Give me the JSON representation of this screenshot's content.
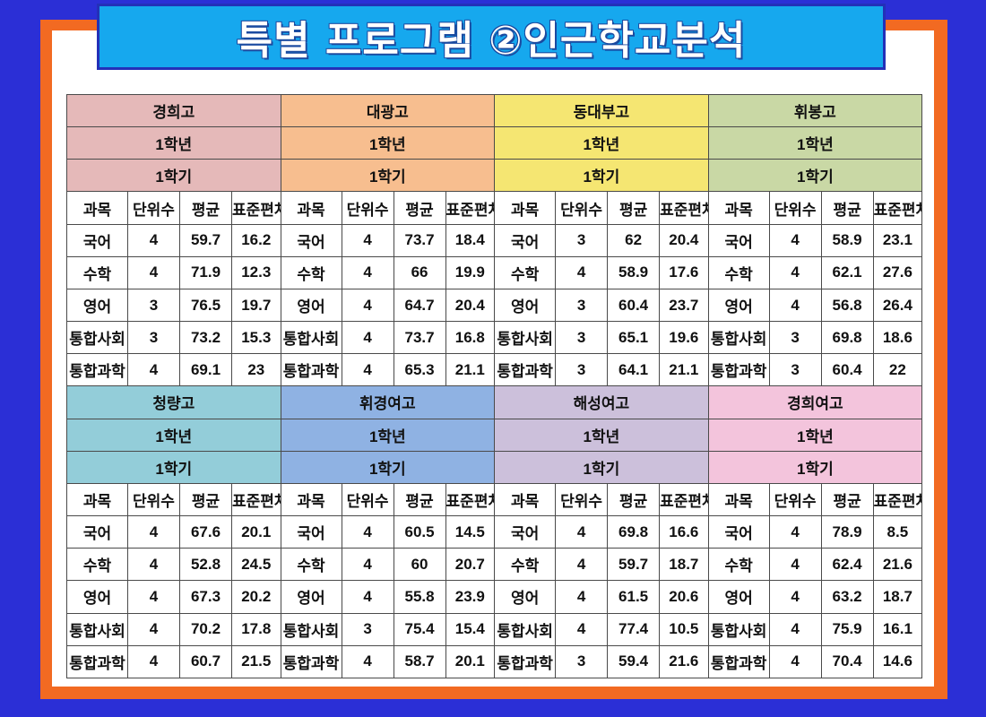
{
  "title": "특별 프로그램 ②인근학교분석",
  "column_headers": [
    "과목",
    "단위수",
    "평균",
    "표준편차"
  ],
  "grade_label": "1학년",
  "semester_label": "1학기",
  "colors": {
    "경희고": "#e5b9b9",
    "대광고": "#f7be8f",
    "동대부고": "#f5e672",
    "휘봉고": "#c9d8a5",
    "청량고": "#93cdd9",
    "휘경여고": "#8fb2e3",
    "해성여고": "#ccc0db",
    "경희여고": "#f3c4dc"
  },
  "blocks": [
    {
      "schools": [
        {
          "name": "경희고",
          "rows": [
            [
              "국어",
              "4",
              "59.7",
              "16.2"
            ],
            [
              "수학",
              "4",
              "71.9",
              "12.3"
            ],
            [
              "영어",
              "3",
              "76.5",
              "19.7"
            ],
            [
              "통합사회",
              "3",
              "73.2",
              "15.3"
            ],
            [
              "통합과학",
              "4",
              "69.1",
              "23"
            ]
          ]
        },
        {
          "name": "대광고",
          "rows": [
            [
              "국어",
              "4",
              "73.7",
              "18.4"
            ],
            [
              "수학",
              "4",
              "66",
              "19.9"
            ],
            [
              "영어",
              "4",
              "64.7",
              "20.4"
            ],
            [
              "통합사회",
              "4",
              "73.7",
              "16.8"
            ],
            [
              "통합과학",
              "4",
              "65.3",
              "21.1"
            ]
          ]
        },
        {
          "name": "동대부고",
          "rows": [
            [
              "국어",
              "3",
              "62",
              "20.4"
            ],
            [
              "수학",
              "4",
              "58.9",
              "17.6"
            ],
            [
              "영어",
              "3",
              "60.4",
              "23.7"
            ],
            [
              "통합사회",
              "3",
              "65.1",
              "19.6"
            ],
            [
              "통합과학",
              "3",
              "64.1",
              "21.1"
            ]
          ]
        },
        {
          "name": "휘봉고",
          "rows": [
            [
              "국어",
              "4",
              "58.9",
              "23.1"
            ],
            [
              "수학",
              "4",
              "62.1",
              "27.6"
            ],
            [
              "영어",
              "4",
              "56.8",
              "26.4"
            ],
            [
              "통합사회",
              "3",
              "69.8",
              "18.6"
            ],
            [
              "통합과학",
              "3",
              "60.4",
              "22"
            ]
          ]
        }
      ]
    },
    {
      "schools": [
        {
          "name": "청량고",
          "rows": [
            [
              "국어",
              "4",
              "67.6",
              "20.1"
            ],
            [
              "수학",
              "4",
              "52.8",
              "24.5"
            ],
            [
              "영어",
              "4",
              "67.3",
              "20.2"
            ],
            [
              "통합사회",
              "4",
              "70.2",
              "17.8"
            ],
            [
              "통합과학",
              "4",
              "60.7",
              "21.5"
            ]
          ]
        },
        {
          "name": "휘경여고",
          "rows": [
            [
              "국어",
              "4",
              "60.5",
              "14.5"
            ],
            [
              "수학",
              "4",
              "60",
              "20.7"
            ],
            [
              "영어",
              "4",
              "55.8",
              "23.9"
            ],
            [
              "통합사회",
              "3",
              "75.4",
              "15.4"
            ],
            [
              "통합과학",
              "4",
              "58.7",
              "20.1"
            ]
          ]
        },
        {
          "name": "해성여고",
          "rows": [
            [
              "국어",
              "4",
              "69.8",
              "16.6"
            ],
            [
              "수학",
              "4",
              "59.7",
              "18.7"
            ],
            [
              "영어",
              "4",
              "61.5",
              "20.6"
            ],
            [
              "통합사회",
              "4",
              "77.4",
              "10.5"
            ],
            [
              "통합과학",
              "3",
              "59.4",
              "21.6"
            ]
          ]
        },
        {
          "name": "경희여고",
          "rows": [
            [
              "국어",
              "4",
              "78.9",
              "8.5"
            ],
            [
              "수학",
              "4",
              "62.4",
              "21.6"
            ],
            [
              "영어",
              "4",
              "63.2",
              "18.7"
            ],
            [
              "통합사회",
              "4",
              "75.9",
              "16.1"
            ],
            [
              "통합과학",
              "4",
              "70.4",
              "14.6"
            ]
          ]
        }
      ]
    }
  ]
}
